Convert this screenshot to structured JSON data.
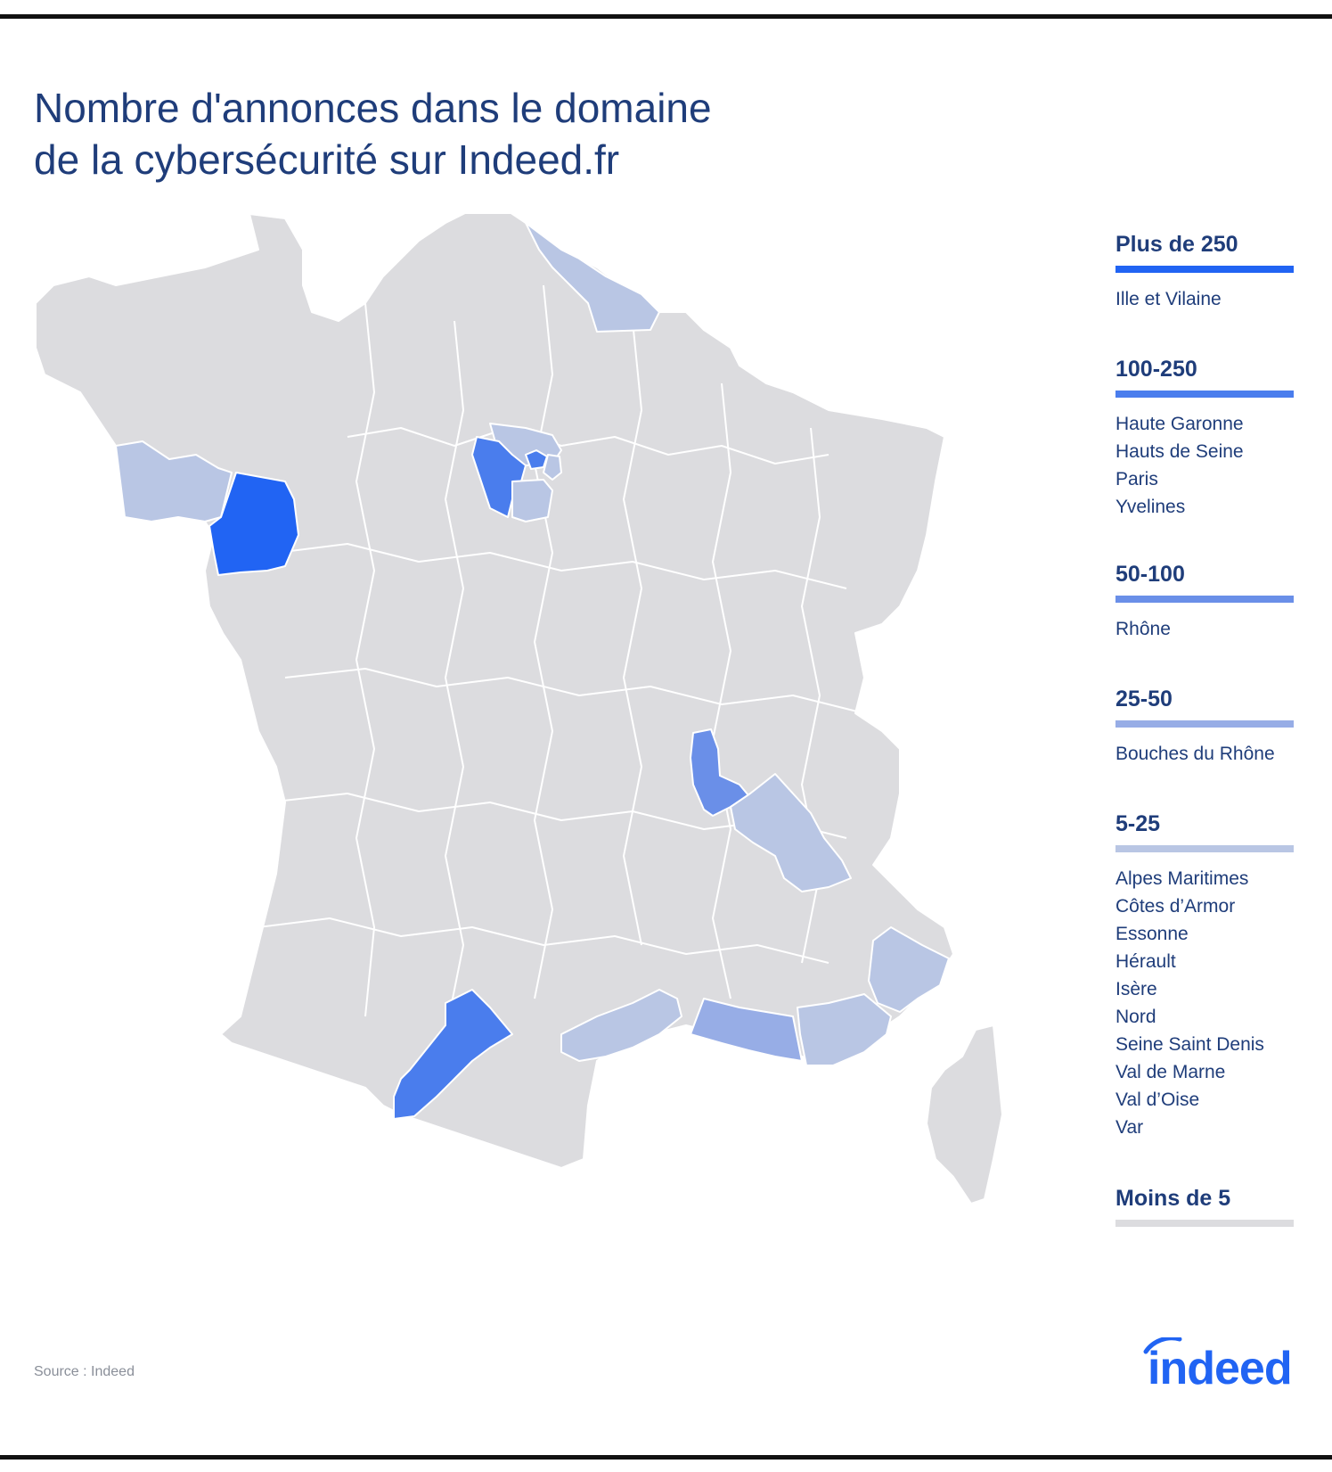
{
  "title": {
    "line1": "Nombre d'annonces dans le domaine",
    "line2": "de la cybersécurité sur Indeed.fr"
  },
  "legend": [
    {
      "heading": "Plus de 250",
      "color": "#2164f3",
      "items": [
        "Ille et Vilaine"
      ]
    },
    {
      "heading": "100-250",
      "color": "#4a7ded",
      "items": [
        "Haute Garonne",
        "Hauts de Seine",
        "Paris",
        "Yvelines"
      ]
    },
    {
      "heading": "50-100",
      "color": "#6a8fe8",
      "items": [
        "Rhône"
      ]
    },
    {
      "heading": "25-50",
      "color": "#97ade6",
      "items": [
        "Bouches du Rhône"
      ]
    },
    {
      "heading": "5-25",
      "color": "#b9c6e4",
      "items": [
        "Alpes Maritimes",
        "Côtes d’Armor",
        "Essonne",
        "Hérault",
        "Isère",
        "Nord",
        "Seine Saint Denis",
        "Val de Marne",
        "Val d’Oise",
        "Var"
      ]
    },
    {
      "heading": "Moins de 5",
      "color": "#dcdcdf",
      "items": []
    }
  ],
  "colors": {
    "base": "#dcdcdf",
    "border": "#ffffff",
    "title": "#1f3d7a",
    "brand": "#2164f3"
  },
  "source": "Source : Indeed",
  "logo_text": "indeed"
}
